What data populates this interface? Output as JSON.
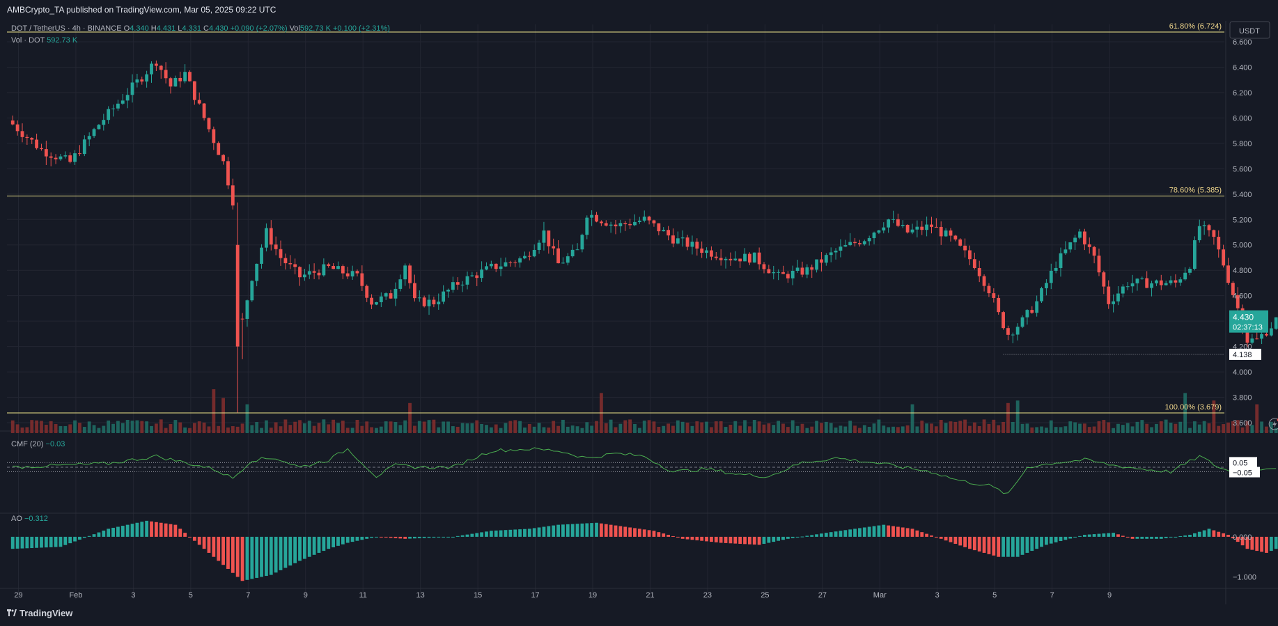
{
  "header": {
    "publisher_line": "AMBCrypto_TA published on TradingView.com, Mar 05, 2025 09:22 UTC",
    "symbol": "DOT / TetherUS · 4h · BINANCE",
    "open_label": "O",
    "open": "4.340",
    "high_label": "H",
    "high": "4.431",
    "low_label": "L",
    "low": "4.331",
    "close_label": "C",
    "close": "4.430",
    "change": "+0.090 (+2.07%)",
    "vol_label": "Vol",
    "vol": "592.73 K",
    "vol_change": "+0.100 (+2.31%)",
    "vol_indicator_label": "Vol · DOT",
    "vol_indicator_value": "592.73 K",
    "currency_button": "USDT"
  },
  "indicators": {
    "cmf_label": "CMF (20)",
    "cmf_value": "−0.03",
    "ao_label": "AO",
    "ao_value": "−0.312"
  },
  "price_axis": {
    "ticks": [
      "6.600",
      "6.400",
      "6.200",
      "6.000",
      "5.800",
      "5.600",
      "5.400",
      "5.200",
      "5.000",
      "4.800",
      "4.600",
      "4.400",
      "4.200",
      "4.000",
      "3.800",
      "3.600"
    ],
    "current_price": "4.430",
    "countdown": "02:37:13",
    "support_label": "4.138"
  },
  "cmf_axis": {
    "upper": "0.05",
    "lower": "−0.05"
  },
  "ao_axis": {
    "ticks": [
      "0.000",
      "−1.000"
    ]
  },
  "time_axis": {
    "ticks": [
      "29",
      "Feb",
      "3",
      "5",
      "7",
      "9",
      "11",
      "13",
      "15",
      "17",
      "19",
      "21",
      "23",
      "25",
      "27",
      "Mar",
      "3",
      "5",
      "7",
      "9"
    ]
  },
  "fib_levels": [
    {
      "label": "61.80% (6.724)",
      "price": 6.724
    },
    {
      "label": "78.60% (5.385)",
      "price": 5.385
    },
    {
      "label": "100.00% (3.679)",
      "price": 3.679
    }
  ],
  "colors": {
    "background": "#161a25",
    "up": "#26a69a",
    "down": "#ef5350",
    "fib": "#f0e68c",
    "cmf": "#4caf50",
    "price_badge": "#26a69a"
  },
  "footer": {
    "brand": "TradingView"
  },
  "chart_data": {
    "type": "candlestick",
    "title": "DOT / TetherUS · 4h · BINANCE",
    "interval": "4h",
    "x_start": "2025-01-28",
    "candles_per_day": 6,
    "price_ylim": [
      3.6,
      6.6
    ],
    "support_price": 4.138,
    "anchors": [
      [
        0,
        5.95
      ],
      [
        6,
        5.75
      ],
      [
        12,
        5.65
      ],
      [
        18,
        5.95
      ],
      [
        24,
        6.2
      ],
      [
        30,
        6.45
      ],
      [
        33,
        6.25
      ],
      [
        36,
        6.35
      ],
      [
        40,
        6.0
      ],
      [
        44,
        5.65
      ],
      [
        46,
        5.35
      ],
      [
        47,
        4.4
      ],
      [
        48,
        4.4
      ],
      [
        50,
        4.75
      ],
      [
        53,
        5.1
      ],
      [
        56,
        4.9
      ],
      [
        60,
        4.75
      ],
      [
        66,
        4.82
      ],
      [
        72,
        4.75
      ],
      [
        75,
        4.55
      ],
      [
        79,
        4.6
      ],
      [
        82,
        4.85
      ],
      [
        84,
        4.55
      ],
      [
        88,
        4.55
      ],
      [
        93,
        4.7
      ],
      [
        100,
        4.82
      ],
      [
        107,
        4.9
      ],
      [
        111,
        5.1
      ],
      [
        114,
        4.85
      ],
      [
        118,
        4.95
      ],
      [
        120,
        5.25
      ],
      [
        126,
        5.15
      ],
      [
        132,
        5.2
      ],
      [
        138,
        5.05
      ],
      [
        145,
        4.95
      ],
      [
        150,
        4.9
      ],
      [
        155,
        4.9
      ],
      [
        160,
        4.75
      ],
      [
        166,
        4.8
      ],
      [
        172,
        4.95
      ],
      [
        178,
        5.05
      ],
      [
        183,
        5.2
      ],
      [
        187,
        5.1
      ],
      [
        192,
        5.15
      ],
      [
        196,
        5.05
      ],
      [
        201,
        4.85
      ],
      [
        204,
        4.65
      ],
      [
        206,
        4.45
      ],
      [
        208,
        4.3
      ],
      [
        211,
        4.4
      ],
      [
        214,
        4.55
      ],
      [
        218,
        4.85
      ],
      [
        221,
        5.0
      ],
      [
        223,
        5.1
      ],
      [
        226,
        4.9
      ],
      [
        229,
        4.55
      ],
      [
        233,
        4.7
      ],
      [
        238,
        4.7
      ],
      [
        243,
        4.7
      ],
      [
        246,
        4.85
      ],
      [
        248,
        5.15
      ],
      [
        251,
        5.05
      ],
      [
        253,
        4.85
      ],
      [
        256,
        4.5
      ],
      [
        258,
        4.25
      ],
      [
        260,
        4.25
      ],
      [
        264,
        4.4
      ]
    ],
    "volume_spikes": [
      [
        42,
        3.5
      ],
      [
        44,
        2.8
      ],
      [
        49,
        2.3
      ],
      [
        83,
        2.4
      ],
      [
        123,
        3.2
      ],
      [
        188,
        2.3
      ],
      [
        208,
        2.4
      ],
      [
        210,
        2.6
      ],
      [
        245,
        3.2
      ],
      [
        251,
        2.6
      ],
      [
        260,
        2.3
      ]
    ],
    "cmf_anchors": [
      [
        0,
        0.0
      ],
      [
        10,
        0.02
      ],
      [
        20,
        0.04
      ],
      [
        30,
        0.12
      ],
      [
        36,
        0.05
      ],
      [
        42,
        -0.02
      ],
      [
        46,
        -0.12
      ],
      [
        50,
        0.08
      ],
      [
        55,
        0.1
      ],
      [
        60,
        0.0
      ],
      [
        66,
        0.08
      ],
      [
        70,
        0.2
      ],
      [
        73,
        0.05
      ],
      [
        76,
        -0.1
      ],
      [
        80,
        0.02
      ],
      [
        85,
        0.0
      ],
      [
        92,
        0.0
      ],
      [
        100,
        0.18
      ],
      [
        108,
        0.2
      ],
      [
        114,
        0.18
      ],
      [
        120,
        0.1
      ],
      [
        126,
        0.15
      ],
      [
        132,
        0.12
      ],
      [
        138,
        -0.05
      ],
      [
        145,
        -0.02
      ],
      [
        152,
        -0.08
      ],
      [
        158,
        -0.1
      ],
      [
        165,
        0.05
      ],
      [
        172,
        0.1
      ],
      [
        180,
        0.05
      ],
      [
        186,
        0.0
      ],
      [
        192,
        -0.05
      ],
      [
        198,
        -0.15
      ],
      [
        204,
        -0.2
      ],
      [
        208,
        -0.3
      ],
      [
        212,
        0.0
      ],
      [
        218,
        0.05
      ],
      [
        224,
        0.08
      ],
      [
        230,
        0.02
      ],
      [
        236,
        -0.02
      ],
      [
        242,
        -0.05
      ],
      [
        248,
        0.12
      ],
      [
        252,
        0.0
      ],
      [
        256,
        -0.08
      ],
      [
        260,
        -0.02
      ],
      [
        264,
        0.0
      ]
    ],
    "ao_anchors": [
      [
        0,
        -0.3
      ],
      [
        10,
        -0.25
      ],
      [
        20,
        0.2
      ],
      [
        28,
        0.4
      ],
      [
        34,
        0.3
      ],
      [
        40,
        -0.3
      ],
      [
        44,
        -0.7
      ],
      [
        48,
        -1.1
      ],
      [
        54,
        -0.95
      ],
      [
        60,
        -0.6
      ],
      [
        66,
        -0.3
      ],
      [
        70,
        -0.15
      ],
      [
        76,
        0.0
      ],
      [
        82,
        -0.05
      ],
      [
        92,
        0.0
      ],
      [
        100,
        0.15
      ],
      [
        108,
        0.2
      ],
      [
        114,
        0.3
      ],
      [
        122,
        0.35
      ],
      [
        128,
        0.25
      ],
      [
        134,
        0.15
      ],
      [
        140,
        -0.05
      ],
      [
        148,
        -0.15
      ],
      [
        156,
        -0.2
      ],
      [
        162,
        -0.05
      ],
      [
        170,
        0.1
      ],
      [
        176,
        0.2
      ],
      [
        182,
        0.3
      ],
      [
        188,
        0.2
      ],
      [
        194,
        -0.05
      ],
      [
        200,
        -0.3
      ],
      [
        206,
        -0.5
      ],
      [
        210,
        -0.5
      ],
      [
        216,
        -0.2
      ],
      [
        224,
        0.05
      ],
      [
        230,
        0.1
      ],
      [
        234,
        -0.05
      ],
      [
        240,
        -0.05
      ],
      [
        246,
        0.05
      ],
      [
        250,
        0.2
      ],
      [
        254,
        0.05
      ],
      [
        258,
        -0.3
      ],
      [
        262,
        -0.4
      ],
      [
        264,
        -0.3
      ]
    ],
    "ao_ylim": [
      -1.2,
      0.45
    ],
    "cmf_ylim": [
      -0.45,
      0.35
    ],
    "x_days_visible": [
      -0.2,
      42.2
    ]
  }
}
